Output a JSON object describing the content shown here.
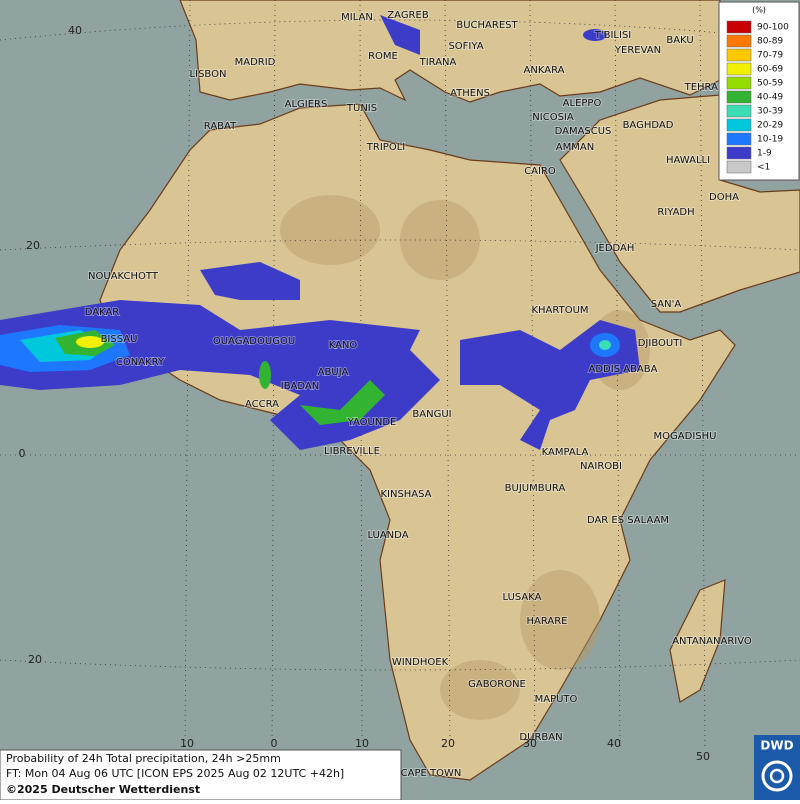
{
  "map": {
    "cities": [
      "MILAN",
      "ZAGREB",
      "BUCHAREST",
      "T'BILISI",
      "BAKU",
      "YEREVAN",
      "MADRID",
      "ROME",
      "SOFIYA",
      "LISBON",
      "TIRANA",
      "ANKARA",
      "TEHRAN",
      "ATHENS",
      "ALGIERS",
      "TUNIS",
      "ALEPPO",
      "RABAT",
      "NICOSIA",
      "BAGHDAD",
      "DAMASCUS",
      "AMMAN",
      "TRIPOLI",
      "HAWALLI",
      "CAIRO",
      "DOHA",
      "RIYADH",
      "JEDDAH",
      "NOUAKCHOTT",
      "KHARTOUM",
      "SAN'A",
      "DAKAR",
      "BISSAU",
      "OUAGADOUGOU",
      "DJIBOUTI",
      "CONAKRY",
      "KANO",
      "ABUJA",
      "ADDIS ABABA",
      "IBADAN",
      "ACCRA",
      "BANGUI",
      "YAOUNDE",
      "MOGADISHU",
      "LIBREVILLE",
      "KAMPALA",
      "NAIROBI",
      "KINSHASA",
      "BUJUMBURA",
      "DAR ES SALAAM",
      "LUANDA",
      "LUSAKA",
      "HARARE",
      "ANTANANARIVO",
      "WINDHOEK",
      "GABORONE",
      "MAPUTO",
      "DURBAN",
      "CAPE TOWN"
    ],
    "lat_labels": [
      "40",
      "20",
      "0",
      "20"
    ],
    "lon_labels": [
      "10",
      "0",
      "10",
      "20",
      "30",
      "40",
      "50"
    ]
  },
  "legend": {
    "title": "(%)",
    "items": [
      {
        "label": "90-100",
        "color": "#c80000"
      },
      {
        "label": "80-89",
        "color": "#ff7800"
      },
      {
        "label": "70-79",
        "color": "#ffc800"
      },
      {
        "label": "60-69",
        "color": "#f0f000"
      },
      {
        "label": "50-59",
        "color": "#96dc00"
      },
      {
        "label": "40-49",
        "color": "#32b432"
      },
      {
        "label": "30-39",
        "color": "#3cdcb4"
      },
      {
        "label": "20-29",
        "color": "#00c8dc"
      },
      {
        "label": "10-19",
        "color": "#1e78ff"
      },
      {
        "label": "1-9",
        "color": "#3c3cc8"
      },
      {
        "label": "<1",
        "color": "#c8c8c8"
      }
    ]
  },
  "footer": {
    "line1": "Probability of 24h Total precipitation, 24h >25mm",
    "line2": "FT: Mon 04 Aug 06 UTC [ICON EPS 2025 Aug 02 12UTC +42h]",
    "line3": "©2025 Deutscher Wetterdienst"
  },
  "logo": "DWD"
}
